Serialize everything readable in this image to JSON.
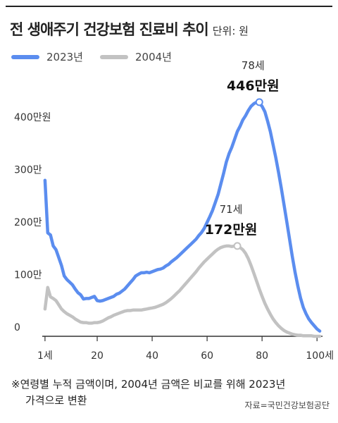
{
  "header": {
    "title": "전 생애주기 건강보험 진료비 추이",
    "unit": "단위: 원"
  },
  "footnote": {
    "line1": "※연령별 누적 금액이며, 2004년 금액은 비교를 위해 2023년",
    "line2": "가격으로 변환"
  },
  "source": "자료=국민건강보험공단",
  "chart_data": {
    "type": "line",
    "xlim": [
      0,
      102
    ],
    "ylim": [
      0,
      470
    ],
    "x_ticks": [
      {
        "value": 1,
        "label": "1세"
      },
      {
        "value": 20,
        "label": "20"
      },
      {
        "value": 40,
        "label": "40"
      },
      {
        "value": 60,
        "label": "60"
      },
      {
        "value": 80,
        "label": "80"
      },
      {
        "value": 100,
        "label": "100세"
      }
    ],
    "y_ticks": [
      {
        "value": 0,
        "label": "0"
      },
      {
        "value": 100,
        "label": "100만"
      },
      {
        "value": 200,
        "label": "200만"
      },
      {
        "value": 300,
        "label": "300만"
      },
      {
        "value": 400,
        "label": "400만원"
      }
    ],
    "grid": false,
    "legend": "top-left",
    "series": [
      {
        "name": "2023년",
        "color": "#5b8def",
        "x": [
          1,
          2,
          3,
          4,
          5,
          6,
          7,
          8,
          9,
          10,
          11,
          12,
          13,
          14,
          15,
          16,
          17,
          18,
          19,
          20,
          21,
          22,
          23,
          24,
          25,
          26,
          27,
          28,
          29,
          30,
          31,
          32,
          33,
          34,
          35,
          36,
          37,
          38,
          39,
          40,
          41,
          42,
          43,
          44,
          45,
          46,
          47,
          48,
          49,
          50,
          51,
          52,
          53,
          54,
          55,
          56,
          57,
          58,
          59,
          60,
          61,
          62,
          63,
          64,
          65,
          66,
          67,
          68,
          69,
          70,
          71,
          72,
          73,
          74,
          75,
          76,
          77,
          78,
          79,
          80,
          81,
          82,
          83,
          84,
          85,
          86,
          87,
          88,
          89,
          90,
          91,
          92,
          93,
          94,
          95,
          96,
          97,
          98,
          99,
          100,
          101
        ],
        "values": [
          297,
          197,
          193,
          172,
          165,
          150,
          135,
          115,
          108,
          103,
          98,
          90,
          83,
          79,
          71,
          72,
          72,
          74,
          76,
          68,
          67,
          68,
          70,
          72,
          74,
          76,
          80,
          82,
          86,
          90,
          96,
          102,
          108,
          115,
          118,
          121,
          121,
          122,
          121,
          123,
          125,
          127,
          128,
          130,
          134,
          137,
          142,
          146,
          150,
          155,
          160,
          165,
          170,
          175,
          180,
          185,
          192,
          198,
          206,
          217,
          228,
          240,
          255,
          270,
          290,
          310,
          332,
          348,
          360,
          375,
          390,
          400,
          412,
          420,
          430,
          438,
          443,
          446,
          444,
          438,
          428,
          410,
          390,
          365,
          340,
          312,
          282,
          250,
          218,
          185,
          152,
          122,
          96,
          73,
          55,
          43,
          33,
          26,
          20,
          14,
          10
        ],
        "annotation": {
          "x": 79,
          "y": 446,
          "label_top": "78세",
          "label_main": "446만원"
        }
      },
      {
        "name": "2004년",
        "color": "#c2c2c2",
        "x": [
          1,
          2,
          3,
          4,
          5,
          6,
          7,
          8,
          9,
          10,
          11,
          12,
          13,
          14,
          15,
          16,
          17,
          18,
          19,
          20,
          21,
          22,
          23,
          24,
          25,
          26,
          27,
          28,
          29,
          30,
          31,
          32,
          33,
          34,
          35,
          36,
          37,
          38,
          39,
          40,
          41,
          42,
          43,
          44,
          45,
          46,
          47,
          48,
          49,
          50,
          51,
          52,
          53,
          54,
          55,
          56,
          57,
          58,
          59,
          60,
          61,
          62,
          63,
          64,
          65,
          66,
          67,
          68,
          69,
          70,
          71,
          72,
          73,
          74,
          75,
          76,
          77,
          78,
          79,
          80,
          81,
          82,
          83,
          84,
          85,
          86,
          87,
          88,
          89,
          90,
          91,
          92,
          93,
          94,
          95,
          96,
          97,
          98,
          99,
          100,
          101
        ],
        "values": [
          52,
          93,
          75,
          72,
          68,
          60,
          52,
          47,
          43,
          40,
          37,
          33,
          30,
          27,
          26,
          26,
          25,
          25,
          26,
          26,
          27,
          29,
          32,
          35,
          37,
          40,
          42,
          44,
          46,
          48,
          49,
          49,
          50,
          50,
          50,
          50,
          51,
          52,
          53,
          54,
          55,
          57,
          59,
          61,
          64,
          68,
          72,
          77,
          82,
          87,
          93,
          99,
          105,
          111,
          117,
          123,
          130,
          136,
          142,
          147,
          152,
          157,
          162,
          166,
          169,
          171,
          172,
          172,
          171,
          172,
          172,
          169,
          165,
          158,
          148,
          135,
          120,
          105,
          90,
          76,
          63,
          52,
          42,
          33,
          26,
          20,
          15,
          11,
          8,
          6,
          4,
          3,
          2,
          2,
          1,
          1,
          1,
          1,
          0,
          0,
          0
        ],
        "annotation": {
          "x": 71,
          "y": 172,
          "label_top": "71세",
          "label_main": "172만원"
        }
      }
    ]
  }
}
